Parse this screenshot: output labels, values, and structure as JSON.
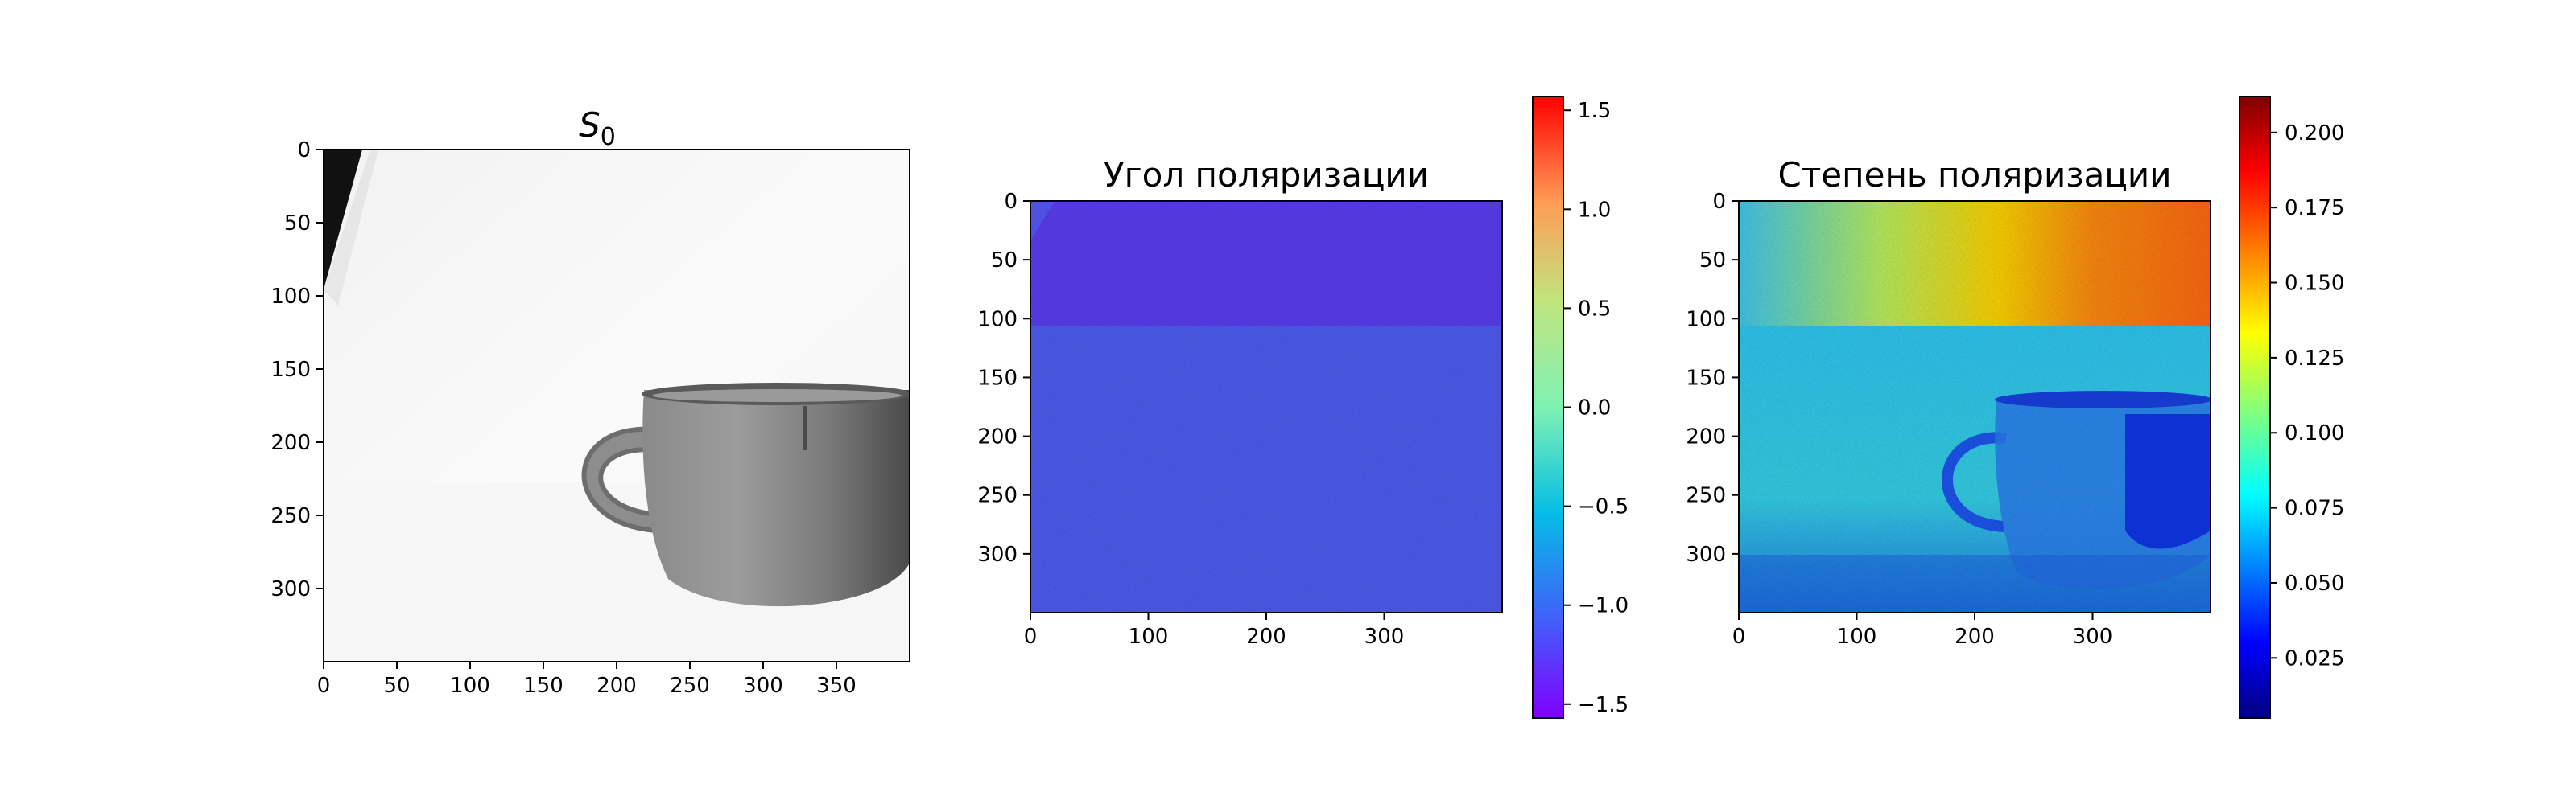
{
  "chart_data": [
    {
      "type": "heatmap",
      "title_base": "S",
      "title_sub": "0",
      "x_ticks": [
        0,
        50,
        100,
        150,
        200,
        250,
        300,
        350
      ],
      "y_ticks": [
        0,
        50,
        100,
        150,
        200,
        250,
        300
      ],
      "xlim": [
        0,
        400
      ],
      "ylim": [
        0,
        350
      ],
      "colormap": "gray"
    },
    {
      "type": "heatmap",
      "title": "Угол поляризации",
      "x_ticks": [
        0,
        100,
        200,
        300
      ],
      "y_ticks": [
        0,
        50,
        100,
        150,
        200,
        250,
        300
      ],
      "xlim": [
        0,
        400
      ],
      "ylim": [
        0,
        350
      ],
      "colormap": "rainbow",
      "colorbar": {
        "ticks": [
          "1.5",
          "1.0",
          "0.5",
          "0.0",
          "−0.5",
          "−1.0",
          "−1.5"
        ],
        "range": [
          -1.57,
          1.57
        ]
      }
    },
    {
      "type": "heatmap",
      "title": "Степень поляризации",
      "x_ticks": [
        0,
        100,
        200,
        300
      ],
      "y_ticks": [
        0,
        50,
        100,
        150,
        200,
        250,
        300
      ],
      "xlim": [
        0,
        400
      ],
      "ylim": [
        0,
        350
      ],
      "colormap": "jet",
      "colorbar": {
        "ticks": [
          "0.200",
          "0.175",
          "0.150",
          "0.125",
          "0.100",
          "0.075",
          "0.050",
          "0.025"
        ],
        "range": [
          0.005,
          0.212
        ]
      }
    }
  ],
  "colors": {
    "angle_fill": "#5b4cf0",
    "angle_fill_top": "#5a3ef2",
    "degree_fill": "#22c0f0"
  }
}
